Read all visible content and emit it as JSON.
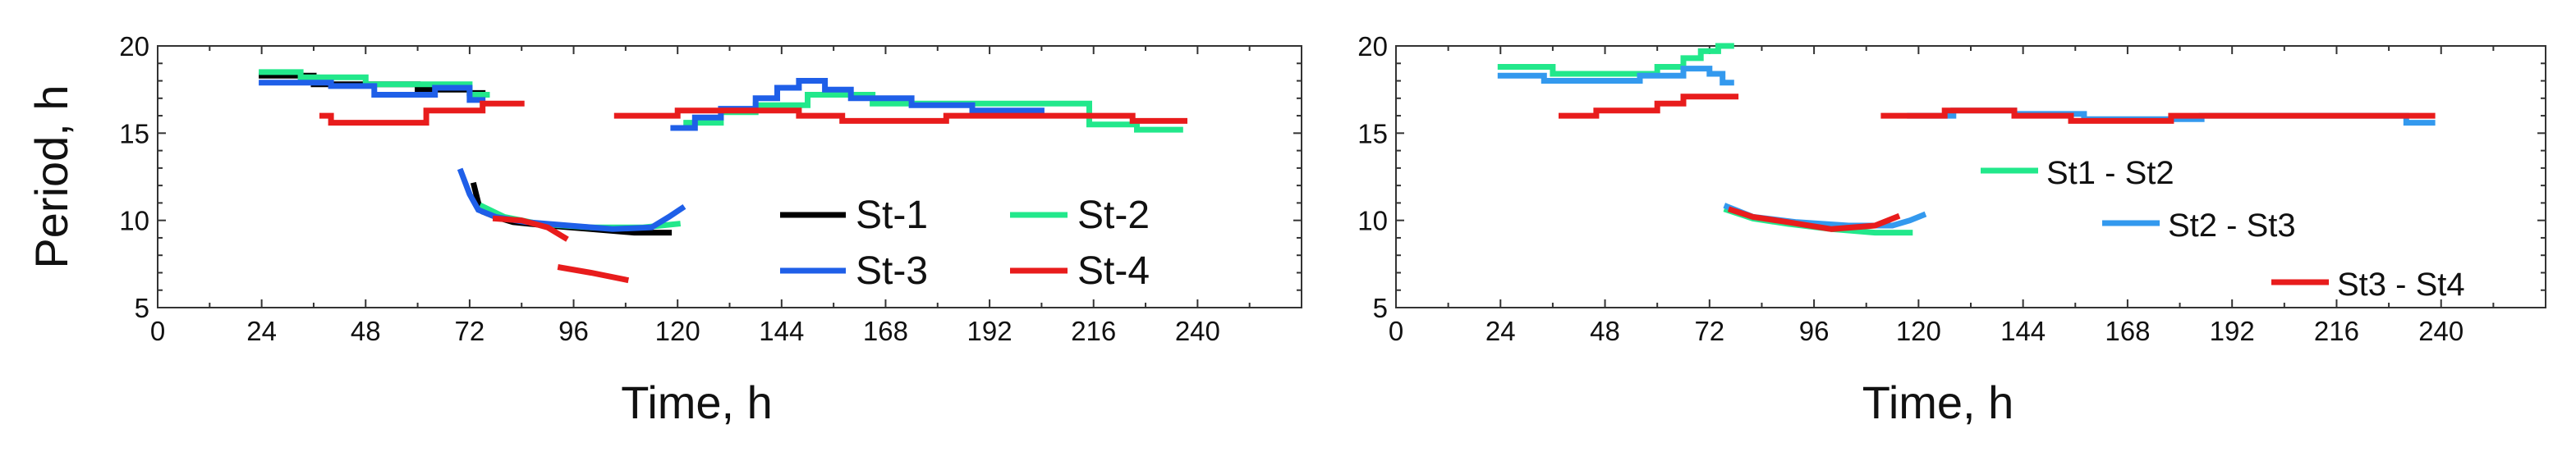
{
  "chart_data": [
    {
      "type": "line",
      "title": "",
      "xlabel": "Time, h",
      "ylabel": "Period, h",
      "xlim": [
        0,
        264
      ],
      "ylim": [
        5,
        20
      ],
      "xticks": [
        0,
        24,
        48,
        72,
        96,
        120,
        144,
        168,
        192,
        216,
        240
      ],
      "yticks": [
        5,
        10,
        15,
        20
      ],
      "grid": false,
      "legend_position": "right",
      "legend_layout": "two-column",
      "series": [
        {
          "name": "St-1",
          "color": "#000000",
          "segments": [
            [
              [
                24,
                18.3
              ],
              [
                36,
                18.3
              ],
              [
                36,
                17.8
              ],
              [
                60,
                17.8
              ],
              [
                60,
                17.5
              ],
              [
                72,
                17.5
              ],
              [
                72,
                17.3
              ],
              [
                75,
                17.3
              ]
            ],
            [
              [
                73,
                12.0
              ],
              [
                74,
                11.0
              ],
              [
                75,
                10.5
              ],
              [
                78,
                10.2
              ],
              [
                82,
                9.9
              ],
              [
                90,
                9.7
              ],
              [
                100,
                9.5
              ],
              [
                110,
                9.3
              ],
              [
                118,
                9.3
              ]
            ]
          ]
        },
        {
          "name": "St-2",
          "color": "#22e88b",
          "segments": [
            [
              [
                24,
                18.5
              ],
              [
                33,
                18.5
              ],
              [
                33,
                18.2
              ],
              [
                48,
                18.2
              ],
              [
                48,
                17.8
              ],
              [
                72,
                17.8
              ],
              [
                72,
                17.2
              ],
              [
                76,
                17.2
              ]
            ],
            [
              [
                75,
                10.8
              ],
              [
                80,
                10.2
              ],
              [
                88,
                9.8
              ],
              [
                100,
                9.6
              ],
              [
                112,
                9.6
              ],
              [
                120,
                9.8
              ]
            ],
            [
              [
                122,
                15.6
              ],
              [
                130,
                15.6
              ],
              [
                130,
                16.2
              ],
              [
                138,
                16.2
              ],
              [
                138,
                16.6
              ],
              [
                150,
                16.6
              ],
              [
                150,
                17.2
              ],
              [
                165,
                17.2
              ],
              [
                165,
                16.7
              ],
              [
                215,
                16.7
              ],
              [
                215,
                15.5
              ],
              [
                226,
                15.5
              ],
              [
                226,
                15.2
              ],
              [
                236,
                15.2
              ]
            ]
          ]
        },
        {
          "name": "St-3",
          "color": "#1f5fe8",
          "segments": [
            [
              [
                24,
                17.9
              ],
              [
                40,
                17.9
              ],
              [
                40,
                17.7
              ],
              [
                50,
                17.7
              ],
              [
                50,
                17.2
              ],
              [
                64,
                17.2
              ],
              [
                64,
                17.6
              ],
              [
                72,
                17.6
              ],
              [
                72,
                16.9
              ],
              [
                75,
                16.9
              ]
            ],
            [
              [
                70,
                12.8
              ],
              [
                72,
                11.5
              ],
              [
                74,
                10.6
              ],
              [
                78,
                10.2
              ],
              [
                85,
                9.9
              ],
              [
                95,
                9.7
              ],
              [
                105,
                9.5
              ],
              [
                114,
                9.6
              ],
              [
                118,
                10.2
              ],
              [
                121,
                10.7
              ]
            ],
            [
              [
                119,
                15.3
              ],
              [
                124,
                15.3
              ],
              [
                124,
                15.9
              ],
              [
                130,
                15.9
              ],
              [
                130,
                16.4
              ],
              [
                138,
                16.4
              ],
              [
                138,
                17.0
              ],
              [
                143,
                17.0
              ],
              [
                143,
                17.6
              ],
              [
                148,
                17.6
              ],
              [
                148,
                18.0
              ],
              [
                154,
                18.0
              ],
              [
                154,
                17.5
              ],
              [
                160,
                17.5
              ],
              [
                160,
                17.0
              ],
              [
                174,
                17.0
              ],
              [
                174,
                16.6
              ],
              [
                188,
                16.6
              ],
              [
                188,
                16.3
              ],
              [
                204,
                16.3
              ]
            ]
          ]
        },
        {
          "name": "St-4",
          "color": "#e81c1c",
          "segments": [
            [
              [
                38,
                16.0
              ],
              [
                40,
                16.0
              ],
              [
                40,
                15.6
              ],
              [
                62,
                15.6
              ],
              [
                62,
                16.3
              ],
              [
                75,
                16.3
              ],
              [
                75,
                16.7
              ],
              [
                84,
                16.7
              ]
            ],
            [
              [
                78,
                10.1
              ],
              [
                84,
                10.0
              ],
              [
                90,
                9.6
              ],
              [
                94,
                9.0
              ]
            ],
            [
              [
                93,
                7.3
              ],
              [
                100,
                7.0
              ],
              [
                108,
                6.6
              ]
            ],
            [
              [
                106,
                16.0
              ],
              [
                120,
                16.0
              ],
              [
                120,
                16.3
              ],
              [
                148,
                16.3
              ],
              [
                148,
                16.0
              ],
              [
                158,
                16.0
              ],
              [
                158,
                15.7
              ],
              [
                182,
                15.7
              ],
              [
                182,
                16.0
              ],
              [
                225,
                16.0
              ],
              [
                225,
                15.7
              ],
              [
                237,
                15.7
              ]
            ]
          ]
        }
      ]
    },
    {
      "type": "line",
      "title": "",
      "xlabel": "Time, h",
      "ylabel": "",
      "xlim": [
        0,
        264
      ],
      "ylim": [
        5,
        20
      ],
      "xticks": [
        0,
        24,
        48,
        72,
        96,
        120,
        144,
        168,
        192,
        216,
        240
      ],
      "yticks": [
        5,
        10,
        15,
        20
      ],
      "grid": false,
      "legend_position": "right",
      "legend_layout": "staggered",
      "series": [
        {
          "name": "St1 - St2",
          "color": "#22e88b",
          "segments": [
            [
              [
                24,
                18.8
              ],
              [
                36,
                18.8
              ],
              [
                36,
                18.4
              ],
              [
                60,
                18.4
              ],
              [
                60,
                18.8
              ],
              [
                66,
                18.8
              ],
              [
                66,
                19.3
              ],
              [
                70,
                19.3
              ],
              [
                70,
                19.7
              ],
              [
                74,
                19.7
              ],
              [
                74,
                20.0
              ],
              [
                77,
                20.0
              ]
            ],
            [
              [
                76,
                10.6
              ],
              [
                82,
                10.1
              ],
              [
                90,
                9.8
              ],
              [
                100,
                9.5
              ],
              [
                110,
                9.3
              ],
              [
                118,
                9.3
              ]
            ]
          ]
        },
        {
          "name": "St2 - St3",
          "color": "#3399ee",
          "segments": [
            [
              [
                24,
                18.3
              ],
              [
                34,
                18.3
              ],
              [
                34,
                18.0
              ],
              [
                56,
                18.0
              ],
              [
                56,
                18.3
              ],
              [
                66,
                18.3
              ],
              [
                66,
                18.7
              ],
              [
                72,
                18.7
              ],
              [
                72,
                18.4
              ],
              [
                75,
                18.4
              ],
              [
                75,
                17.9
              ],
              [
                77,
                17.9
              ]
            ],
            [
              [
                76,
                10.8
              ],
              [
                82,
                10.2
              ],
              [
                92,
                9.9
              ],
              [
                104,
                9.7
              ],
              [
                114,
                9.7
              ],
              [
                118,
                10.0
              ],
              [
                121,
                10.3
              ]
            ],
            [
              [
                118,
                16.0
              ],
              [
                128,
                16.0
              ],
              [
                128,
                16.3
              ],
              [
                142,
                16.3
              ],
              [
                142,
                16.1
              ],
              [
                158,
                16.1
              ],
              [
                158,
                15.8
              ],
              [
                185,
                15.8
              ],
              [
                185,
                16.0
              ],
              [
                232,
                16.0
              ],
              [
                232,
                15.6
              ],
              [
                238,
                15.6
              ]
            ]
          ]
        },
        {
          "name": "St3 - St4",
          "color": "#e81c1c",
          "segments": [
            [
              [
                38,
                16.0
              ],
              [
                46,
                16.0
              ],
              [
                46,
                16.3
              ],
              [
                60,
                16.3
              ],
              [
                60,
                16.7
              ],
              [
                66,
                16.7
              ],
              [
                66,
                17.1
              ],
              [
                78,
                17.1
              ]
            ],
            [
              [
                77,
                10.6
              ],
              [
                82,
                10.2
              ],
              [
                90,
                9.9
              ],
              [
                100,
                9.5
              ],
              [
                110,
                9.7
              ],
              [
                115,
                10.2
              ]
            ],
            [
              [
                112,
                16.0
              ],
              [
                126,
                16.0
              ],
              [
                126,
                16.3
              ],
              [
                142,
                16.3
              ],
              [
                142,
                16.0
              ],
              [
                155,
                16.0
              ],
              [
                155,
                15.7
              ],
              [
                178,
                15.7
              ],
              [
                178,
                16.0
              ],
              [
                238,
                16.0
              ]
            ]
          ]
        }
      ]
    }
  ]
}
